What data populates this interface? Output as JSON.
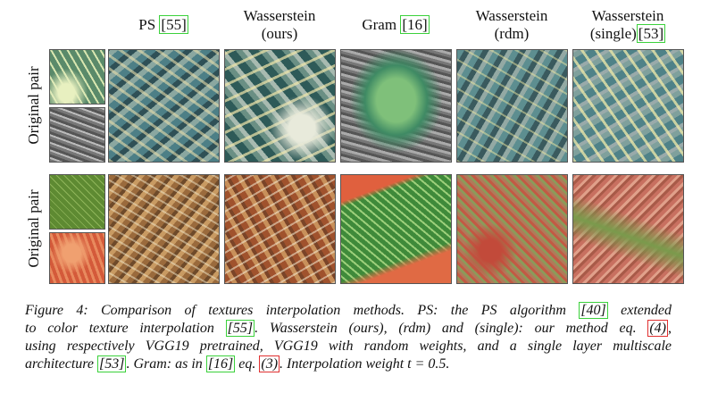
{
  "figure": {
    "row_label": "Original pair",
    "headers": [
      [
        [
          {
            "text": "PS "
          },
          {
            "text": "[55]",
            "ref": "green"
          }
        ]
      ],
      [
        [
          {
            "text": "Wasserstein"
          }
        ],
        [
          {
            "text": "(ours)"
          }
        ]
      ],
      [
        [
          {
            "text": "Gram "
          },
          {
            "text": "[16]",
            "ref": "green"
          }
        ]
      ],
      [
        [
          {
            "text": "Wasserstein"
          }
        ],
        [
          {
            "text": "(rdm)"
          }
        ]
      ],
      [
        [
          {
            "text": "Wasserstein"
          }
        ],
        [
          {
            "text": "(single)"
          },
          {
            "text": "[53]",
            "ref": "green"
          }
        ]
      ]
    ],
    "caption": [
      [
        {
          "text": "Figure 4: Comparison of textures interpolation methods.  PS: the PS algorithm "
        },
        {
          "text": "[40]",
          "ref": "green"
        },
        {
          "text": " extended"
        }
      ],
      [
        {
          "text": "to color texture interpolation "
        },
        {
          "text": "[55]",
          "ref": "green"
        },
        {
          "text": ". Wasserstein (ours), (rdm) and (single): our method eq. "
        },
        {
          "text": "(4)",
          "ref": "red"
        },
        {
          "text": ","
        }
      ],
      [
        {
          "text": "using respectively VGG19 pretrained, VGG19 with random weights, and a single layer multiscale"
        }
      ],
      [
        {
          "text": "architecture "
        },
        {
          "text": "[53]",
          "ref": "green"
        },
        {
          "text": ". Gram: as in "
        },
        {
          "text": "[16]",
          "ref": "green"
        },
        {
          "text": " eq. "
        },
        {
          "text": "(3)",
          "ref": "red"
        },
        {
          "text": ". Interpolation weight t = 0.5."
        }
      ]
    ]
  }
}
